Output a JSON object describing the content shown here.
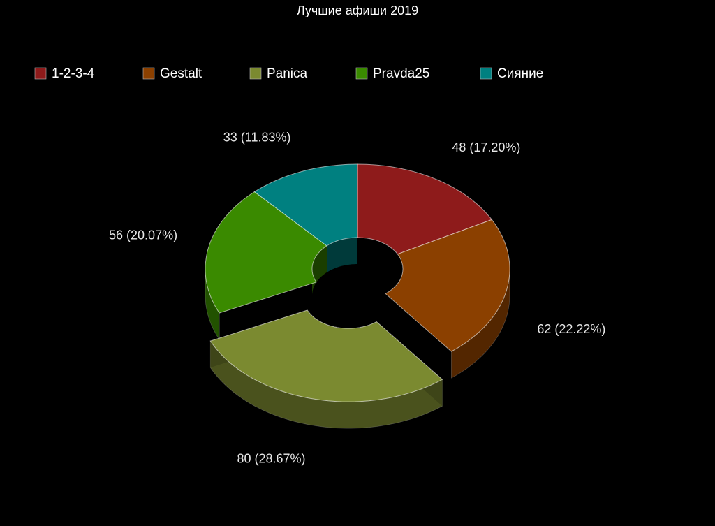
{
  "chart_data": {
    "type": "donut3d",
    "title": "Лучшие афиши 2019",
    "categories": [
      "1-2-3-4",
      "Gestalt",
      "Panica",
      "Pravda25",
      "Сияние"
    ],
    "values": [
      48,
      62,
      80,
      56,
      33
    ],
    "value_labels": [
      "48 (17.20%)",
      "62 (22.22%)",
      "80 (28.67%)",
      "56 (20.07%)",
      "33 (11.83%)"
    ],
    "colors": [
      "#8e1b1b",
      "#8b4000",
      "#7b8a30",
      "#3a8a00",
      "#008080"
    ],
    "exploded": "Panica",
    "legend": "top"
  }
}
